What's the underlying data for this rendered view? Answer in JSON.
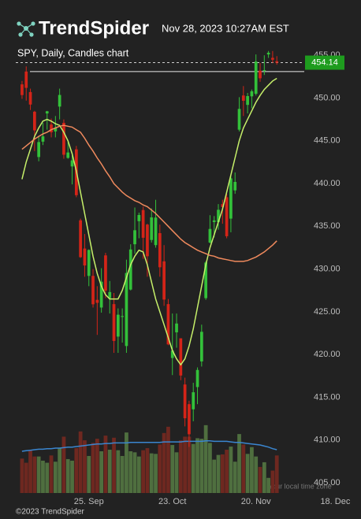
{
  "header": {
    "brand": "TrendSpider",
    "timestamp": "Nov 28, 2023 10:27AM EST"
  },
  "chart_data": {
    "type": "candlestick",
    "title": "SPY, Daily, Candles chart",
    "categories": [
      null,
      null,
      null,
      null,
      null,
      null,
      null,
      null,
      null,
      null,
      null,
      null,
      null,
      null,
      null,
      null,
      null,
      null,
      null,
      null,
      null,
      null,
      null,
      null,
      null,
      null,
      null,
      null,
      null,
      null,
      null,
      null,
      null,
      null,
      null,
      null,
      null,
      null,
      null,
      null,
      null,
      null,
      null,
      null,
      null,
      null,
      null,
      null,
      null,
      null,
      null,
      null,
      null,
      null,
      null,
      null,
      null,
      null,
      null,
      null,
      null,
      null
    ],
    "open": [
      451.6,
      453.1,
      450.7,
      448.4,
      443.1,
      444.9,
      448.2,
      446.9,
      446.1,
      449.0,
      447.1,
      443.0,
      442.0,
      444.0,
      435.7,
      432.4,
      429.2,
      429.2,
      426.4,
      425.5,
      431.6,
      426.6,
      425.9,
      422.1,
      424.4,
      421.0,
      427.6,
      432.9,
      435.6,
      436.9,
      435.2,
      433.4,
      432.8,
      434.2,
      430.9,
      425.9,
      419.6,
      422.6,
      421.9,
      416.5,
      414.2,
      413.6,
      416.2,
      419.2,
      426.6,
      433.1,
      435.5,
      435.5,
      437.6,
      438.4,
      435.9,
      439.2,
      446.3,
      450.3,
      449.2,
      450.2,
      450.5,
      453.2,
      453.2,
      455.1,
      454.7,
      454.3
    ],
    "high": [
      452.0,
      453.7,
      451.1,
      448.5,
      445.6,
      447.1,
      448.5,
      447.6,
      447.9,
      451.1,
      447.5,
      444.9,
      443.3,
      444.4,
      435.9,
      434.1,
      432.3,
      430.0,
      428.0,
      430.1,
      431.9,
      428.6,
      427.2,
      425.4,
      425.4,
      431.1,
      432.9,
      437.2,
      436.6,
      437.3,
      435.3,
      437.1,
      438.1,
      435.2,
      432.8,
      426.5,
      424.8,
      424.8,
      421.9,
      417.3,
      414.6,
      416.7,
      418.5,
      423.5,
      430.9,
      436.3,
      436.2,
      437.6,
      438.1,
      438.8,
      440.9,
      441.3,
      450.1,
      451.4,
      450.6,
      451.0,
      455.1,
      454.1,
      455.0,
      455.5,
      455.5,
      454.9
    ],
    "low": [
      449.9,
      449.7,
      448.6,
      443.8,
      442.6,
      444.5,
      446.3,
      445.4,
      445.4,
      447.5,
      442.9,
      442.9,
      439.9,
      438.4,
      431.3,
      429.1,
      428.0,
      425.5,
      422.3,
      424.9,
      426.6,
      424.8,
      420.2,
      420.2,
      421.4,
      420.2,
      427.5,
      431.8,
      433.6,
      431.2,
      429.1,
      433.1,
      432.5,
      429.1,
      425.7,
      421.1,
      417.6,
      420.8,
      417.0,
      411.6,
      409.2,
      412.2,
      414.2,
      418.6,
      426.4,
      433.0,
      433.7,
      434.6,
      435.3,
      433.6,
      434.3,
      438.8,
      446.1,
      447.9,
      448.2,
      448.8,
      450.3,
      451.9,
      452.7,
      454.7,
      454.1,
      453.9
    ],
    "close": [
      450.35,
      451.19,
      449.24,
      446.22,
      444.85,
      445.52,
      448.45,
      445.99,
      446.51,
      450.36,
      443.37,
      443.63,
      442.71,
      438.64,
      431.39,
      430.42,
      432.23,
      425.88,
      426.05,
      428.52,
      427.48,
      427.31,
      421.59,
      424.66,
      424.5,
      429.54,
      432.29,
      434.54,
      436.32,
      433.66,
      431.5,
      436.04,
      436.02,
      430.21,
      426.43,
      421.19,
      420.46,
      423.63,
      417.55,
      412.55,
      410.68,
      415.59,
      418.2,
      422.66,
      430.76,
      434.69,
      435.69,
      436.93,
      437.25,
      433.84,
      440.61,
      440.19,
      448.73,
      449.68,
      450.23,
      450.79,
      454.26,
      452.31,
      453.27,
      455.3,
      454.48,
      454.14
    ],
    "up_color": "#33c13a",
    "down_color": "#d42418",
    "overlays": [
      {
        "color": "#c6f06a",
        "values": [
          440.5,
          442.5,
          444,
          445.5,
          446.5,
          447.3,
          447.5,
          447.3,
          447,
          446.8,
          446,
          445,
          443.5,
          441.5,
          439,
          436.5,
          434,
          431.5,
          429.5,
          428,
          427,
          426.5,
          426.5,
          426.5,
          427.5,
          429,
          430.5,
          431.5,
          432.2,
          432,
          430.5,
          428.5,
          426.5,
          425,
          423.5,
          422,
          420.5,
          419.5,
          418.8,
          419.5,
          421,
          423,
          425.5,
          428,
          430.5,
          432.5,
          434,
          435.5,
          437,
          439,
          441,
          443,
          445,
          446.5,
          447.5,
          448.5,
          449.5,
          450.3,
          451,
          451.5,
          452,
          452.3
        ]
      },
      {
        "color": "#f08a5d",
        "values": [
          444,
          444.4,
          444.8,
          445.2,
          445.5,
          445.8,
          446,
          446.3,
          446.5,
          446.7,
          446.8,
          446.7,
          446.6,
          446.3,
          446,
          445.3,
          444.5,
          443.8,
          443,
          442.3,
          441.5,
          440.8,
          440,
          439.5,
          439,
          438.6,
          438.3,
          438,
          437.8,
          437.5,
          437.3,
          436.9,
          436.5,
          436,
          435.5,
          435,
          434.5,
          434,
          433.5,
          433.1,
          432.8,
          432.5,
          432.2,
          432,
          431.8,
          431.6,
          431.5,
          431.3,
          431.2,
          431.1,
          431,
          430.9,
          430.9,
          430.9,
          431,
          431.2,
          431.4,
          431.7,
          432,
          432.4,
          432.8,
          433.3
        ]
      }
    ],
    "last_price": 454.14,
    "last_price_color": "#1e9c1e",
    "level_line": 453.1,
    "ylim": [
      403.9,
      456.4
    ],
    "yticks": [
      {
        "value": 405,
        "label": "405.00"
      },
      {
        "value": 410,
        "label": "410.00"
      },
      {
        "value": 415,
        "label": "415.00"
      },
      {
        "value": 420,
        "label": "420.00"
      },
      {
        "value": 425,
        "label": "425.00"
      },
      {
        "value": 430,
        "label": "430.00"
      },
      {
        "value": 435,
        "label": "435.00"
      },
      {
        "value": 440,
        "label": "440.00"
      },
      {
        "value": 445,
        "label": "445.00"
      },
      {
        "value": 450,
        "label": "450.00"
      },
      {
        "value": 455,
        "label": "455.00"
      }
    ],
    "xlim": [
      -1.5,
      77
    ],
    "xticks": [
      {
        "value": 16,
        "label": "25. Sep"
      },
      {
        "value": 36,
        "label": "23. Oct"
      },
      {
        "value": 56,
        "label": "20. Nov"
      },
      {
        "value": 75,
        "label": "18. Dec"
      }
    ],
    "volume": {
      "ylim": [
        0,
        160
      ],
      "up_color": "#4f6f3f",
      "down_color": "#6e2820",
      "values": [
        66,
        58,
        82,
        70,
        70,
        62,
        58,
        72,
        60,
        86,
        108,
        65,
        62,
        86,
        118,
        101,
        71,
        96,
        104,
        80,
        110,
        83,
        106,
        82,
        71,
        116,
        80,
        78,
        70,
        82,
        86,
        76,
        75,
        93,
        115,
        127,
        92,
        78,
        101,
        108,
        108,
        94,
        105,
        104,
        130,
        96,
        64,
        73,
        74,
        83,
        89,
        60,
        113,
        93,
        75,
        88,
        70,
        50,
        59,
        29,
        43,
        72
      ],
      "average": {
        "color": "#3a86d0",
        "values": [
          80,
          81,
          82,
          83,
          84,
          84,
          85,
          85,
          86,
          86,
          87,
          88,
          88,
          89,
          90,
          91,
          92,
          93,
          94,
          94,
          95,
          95,
          96,
          96,
          96,
          96,
          97,
          97,
          97,
          97,
          97,
          97,
          97,
          97,
          98,
          98,
          98,
          98,
          98,
          99,
          99,
          99,
          99,
          99,
          100,
          100,
          99,
          99,
          99,
          99,
          98,
          97,
          97,
          96,
          95,
          94,
          93,
          92,
          90,
          88,
          85,
          83
        ]
      }
    },
    "timezone_note": "Your local time zone"
  },
  "footer": {
    "copyright": "©2023 TrendSpider"
  }
}
